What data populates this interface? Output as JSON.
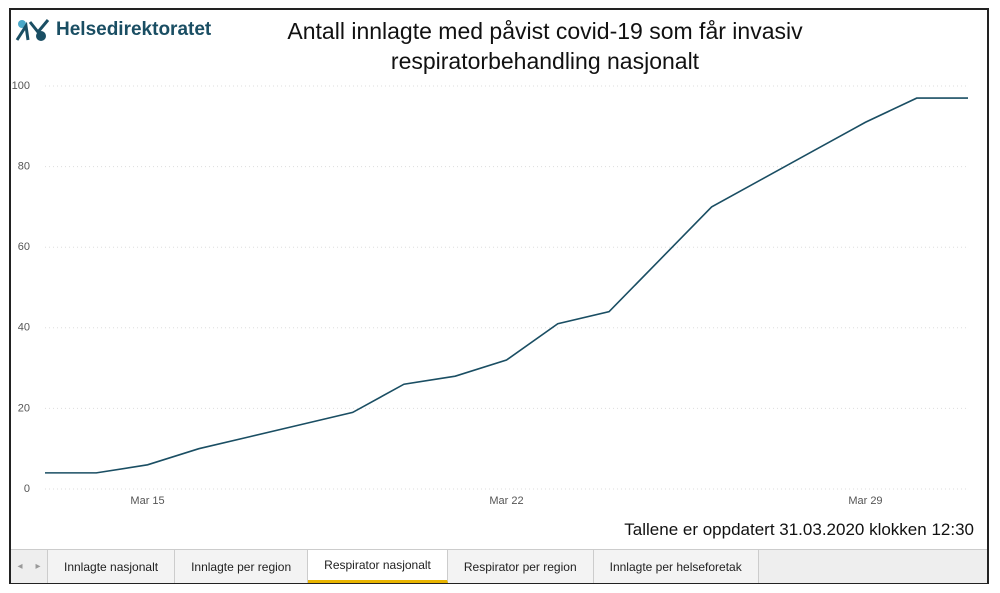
{
  "header": {
    "logo": "Helsedirektoratet"
  },
  "chart_data": {
    "type": "line",
    "title": "Antall innlagte med påvist covid-19 som får invasiv respiratorbehandling nasjonalt",
    "categories": [
      null,
      null,
      "Mar 15",
      null,
      null,
      null,
      null,
      null,
      null,
      "Mar 22",
      null,
      null,
      null,
      null,
      null,
      null,
      "Mar 29",
      null,
      null
    ],
    "values": [
      4,
      4,
      6,
      10,
      13,
      16,
      19,
      26,
      28,
      32,
      41,
      44,
      57,
      70,
      77,
      84,
      91,
      97,
      97
    ],
    "color": "#1a4e63",
    "ylim": [
      0,
      100
    ],
    "yticks": [
      0,
      20,
      40,
      60,
      80,
      100
    ],
    "grid": true
  },
  "footnote": "Tallene er oppdatert 31.03.2020 klokken 12:30",
  "tabs": {
    "items": [
      "Innlagte nasjonalt",
      "Innlagte per region",
      "Respirator nasjonalt",
      "Respirator per region",
      "Innlagte per helseforetak"
    ],
    "active": 2
  }
}
